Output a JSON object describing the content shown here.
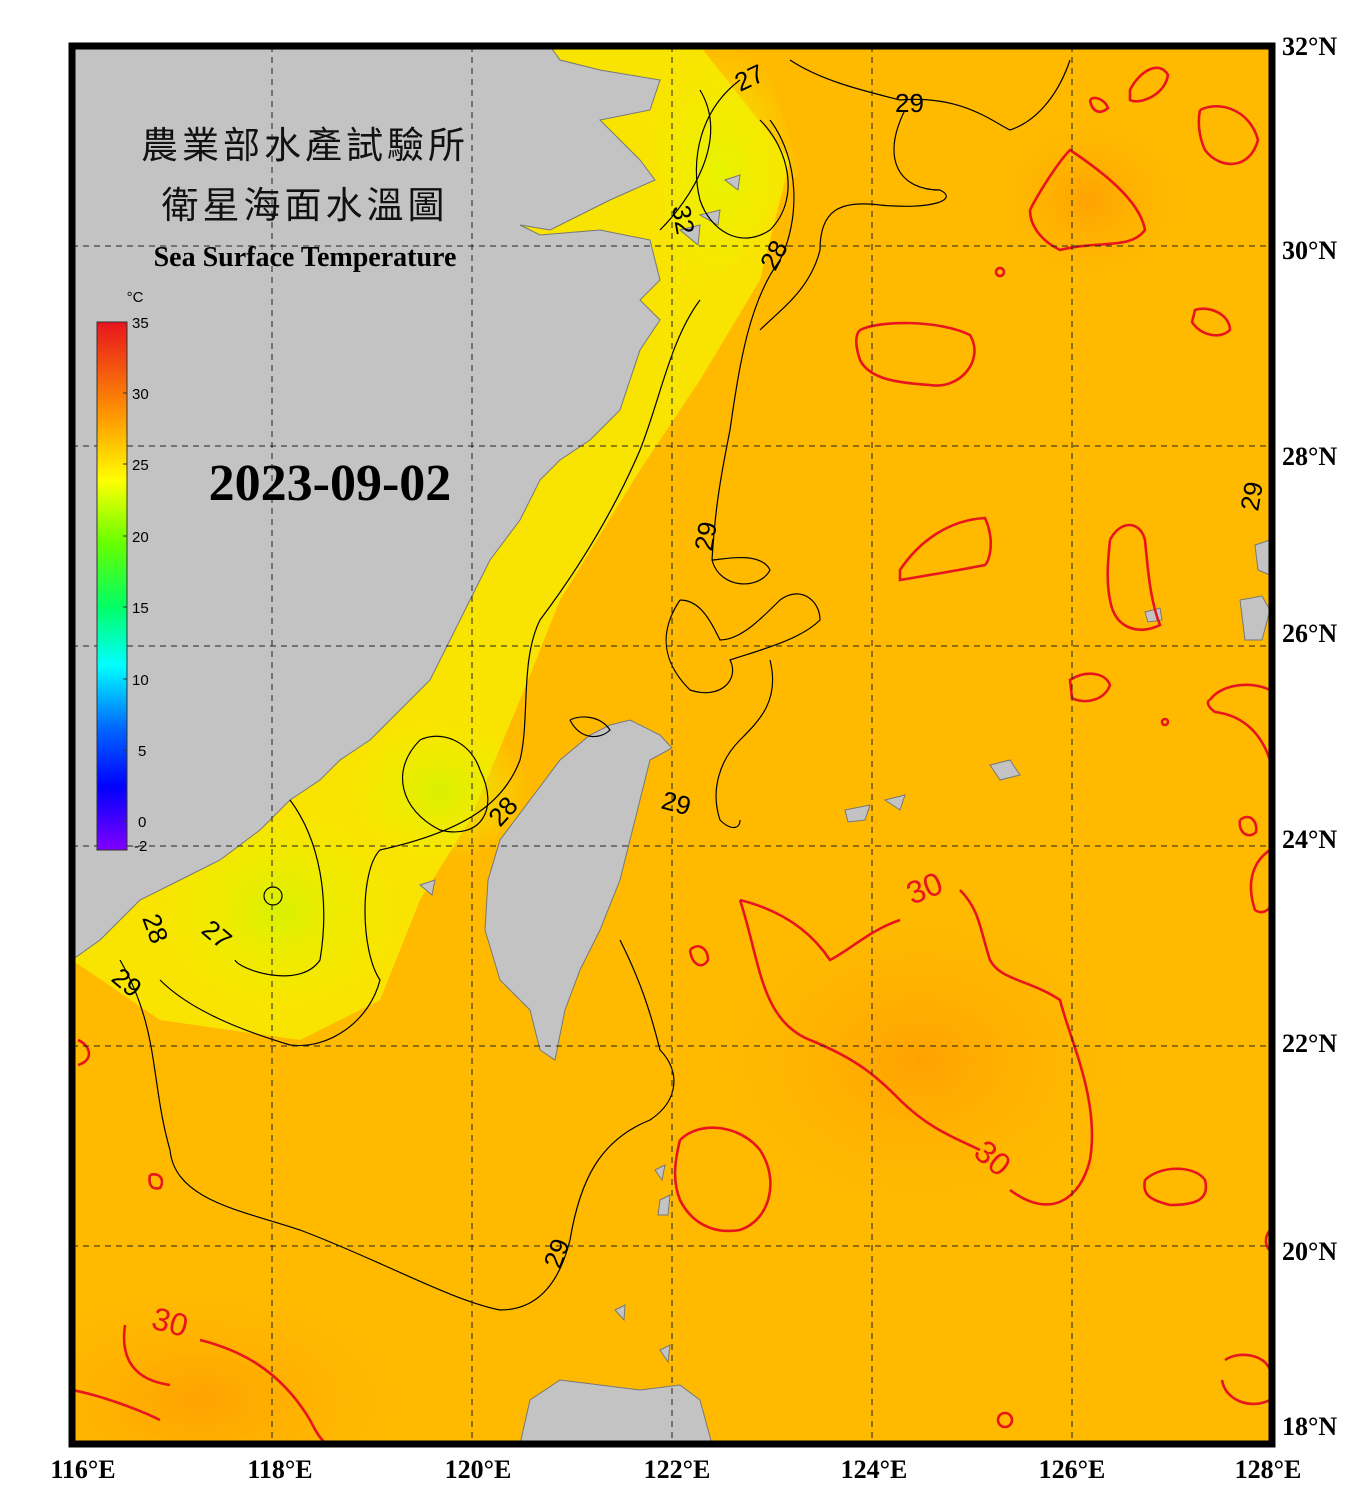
{
  "title": {
    "line1": "農業部水產試驗所",
    "line2": "衛星海面水溫圖",
    "english": "Sea Surface Temperature"
  },
  "date": "2023-09-02",
  "colorbar": {
    "unit": "°C",
    "ticks": [
      "35",
      "30",
      "25",
      "20",
      "15",
      "10",
      "5",
      "0",
      "-2"
    ],
    "colors": [
      "#e8141e",
      "#ff9900",
      "#ffff00",
      "#66ff00",
      "#00ff66",
      "#00ffff",
      "#0066ff",
      "#0000ff",
      "#8000ff"
    ]
  },
  "axes": {
    "lon_labels": [
      "116°E",
      "118°E",
      "120°E",
      "122°E",
      "124°E",
      "126°E",
      "128°E"
    ],
    "lat_labels": [
      "32°N",
      "30°N",
      "28°N",
      "26°N",
      "24°N",
      "22°N",
      "20°N",
      "18°N"
    ],
    "lon_range": [
      116,
      128
    ],
    "lat_range": [
      18,
      32
    ],
    "grid": "dashed"
  },
  "contour_labels": {
    "black": [
      "27",
      "29",
      "32",
      "28",
      "29",
      "28",
      "29",
      "28",
      "27",
      "29",
      "29",
      "29"
    ],
    "red": [
      "30",
      "30",
      "30"
    ]
  },
  "colors": {
    "land": "#c3c3c3",
    "warm_water": "#ffb400",
    "cool_water": "#f0f500",
    "contour_30": "#e8141e",
    "frame": "#000000"
  }
}
